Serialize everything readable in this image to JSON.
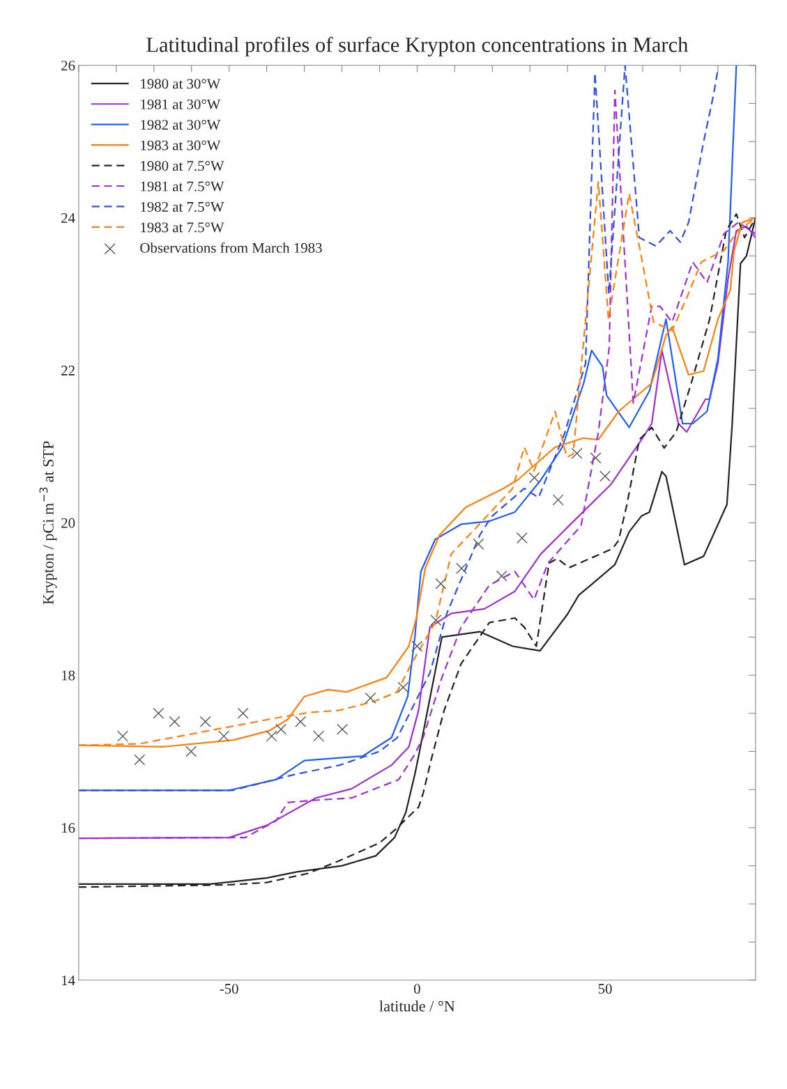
{
  "chart_data": {
    "type": "line",
    "title": "Latitudinal profiles of surface Krypton concentrations in March",
    "xlabel": "latitude / °N",
    "ylabel": "Krypton / pCi m$^{−3}$ at STP",
    "xlim": [
      -90,
      90
    ],
    "ylim": [
      14,
      26
    ],
    "xticks": [
      {
        "value": -90,
        "label": null
      },
      {
        "value": -80,
        "label": null
      },
      {
        "value": -70,
        "label": null
      },
      {
        "value": -60,
        "label": null
      },
      -50,
      {
        "value": -40,
        "label": null
      },
      {
        "value": -30,
        "label": null
      },
      {
        "value": -20,
        "label": null
      },
      {
        "value": -10,
        "label": null
      },
      0,
      {
        "value": 10,
        "label": null
      },
      {
        "value": 20,
        "label": null
      },
      {
        "value": 30,
        "label": null
      },
      {
        "value": 40,
        "label": null
      },
      50,
      {
        "value": 60,
        "label": null
      },
      {
        "value": 70,
        "label": null
      },
      {
        "value": 80,
        "label": null
      },
      {
        "value": 90,
        "label": null
      }
    ],
    "yticks": [
      14,
      {
        "value": 14.5,
        "label": null
      },
      {
        "value": 15,
        "label": null
      },
      {
        "value": 15.5,
        "label": null
      },
      16,
      {
        "value": 16.5,
        "label": null
      },
      {
        "value": 17,
        "label": null
      },
      {
        "value": 17.5,
        "label": null
      },
      18,
      {
        "value": 18.5,
        "label": null
      },
      {
        "value": 19,
        "label": null
      },
      {
        "value": 19.5,
        "label": null
      },
      20,
      {
        "value": 20.5,
        "label": null
      },
      {
        "value": 21,
        "label": null
      },
      {
        "value": 21.5,
        "label": null
      },
      22,
      {
        "value": 22.5,
        "label": null
      },
      {
        "value": 23,
        "label": null
      },
      {
        "value": 23.5,
        "label": null
      },
      24,
      {
        "value": 24.5,
        "label": null
      },
      {
        "value": 25,
        "label": null
      },
      {
        "value": 25.5,
        "label": null
      },
      26
    ],
    "grid": false,
    "legend": "top left",
    "series": [
      {
        "name": "1980 at 30°W",
        "line_style": "solid",
        "color": "#222222",
        "x": [
          -90,
          -55,
          -40,
          -32,
          -20,
          -11,
          -6,
          -3,
          -0.6,
          0.4,
          6.6,
          16.7,
          25.4,
          32.7,
          40,
          43,
          46.4,
          52.6,
          56.4,
          59.7,
          61.8,
          65.1,
          66.2,
          71.1,
          76.2,
          82.4,
          83.8,
          86,
          87.6,
          90
        ],
        "values": [
          15.26,
          15.26,
          15.34,
          15.42,
          15.5,
          15.63,
          15.87,
          16.2,
          16.7,
          16.94,
          18.5,
          18.57,
          18.38,
          18.32,
          18.8,
          19.05,
          19.19,
          19.45,
          19.88,
          20.09,
          20.14,
          20.67,
          20.61,
          19.45,
          19.56,
          20.24,
          21.3,
          23.4,
          23.5,
          24.0
        ]
      },
      {
        "name": "1981 at 30°W",
        "line_style": "solid",
        "color": "#a030d0",
        "x": [
          -90,
          -50,
          -40,
          -26.9,
          -17.4,
          -6.8,
          -2.2,
          0.4,
          3.4,
          9.1,
          17.9,
          26,
          32.9,
          40.4,
          51.5,
          59.7,
          62.4,
          65.1,
          69.5,
          71.7,
          76.7,
          77.8,
          80,
          82.7,
          84.9,
          87.6,
          90
        ],
        "values": [
          15.86,
          15.87,
          16.03,
          16.39,
          16.51,
          16.82,
          17.06,
          17.54,
          18.63,
          18.81,
          18.87,
          19.1,
          19.59,
          19.96,
          20.5,
          21.09,
          21.3,
          22.26,
          21.3,
          21.19,
          21.62,
          21.62,
          22.09,
          23.2,
          23.83,
          23.89,
          23.74
        ]
      },
      {
        "name": "1982 at 30°W",
        "line_style": "solid",
        "color": "#2060f0",
        "x": [
          -90,
          -50,
          -37.5,
          -30,
          -14.4,
          -6.8,
          -2.5,
          -0.6,
          1,
          4.8,
          11.7,
          19.2,
          26,
          32.9,
          38.6,
          44.3,
          46.4,
          49.3,
          50.4,
          56.4,
          61.8,
          66.2,
          70.6,
          73.3,
          77.1,
          80,
          82.7,
          83.3,
          84.9
        ],
        "values": [
          16.49,
          16.49,
          16.63,
          16.88,
          16.94,
          17.18,
          17.72,
          18.5,
          19.36,
          19.78,
          19.98,
          20.02,
          20.14,
          20.56,
          20.99,
          21.83,
          22.26,
          22.05,
          21.67,
          21.25,
          21.73,
          22.67,
          21.3,
          21.3,
          21.46,
          22.15,
          23.42,
          24.1,
          26.0
        ]
      },
      {
        "name": "1983 at 30°W",
        "line_style": "solid",
        "color": "#ff8010",
        "x": [
          -90,
          -67.6,
          -48.8,
          -39.4,
          -34.4,
          -30,
          -23.7,
          -18.7,
          -8.1,
          -2.2,
          -0.2,
          2.2,
          6,
          12.9,
          23,
          26.7,
          36.7,
          44.2,
          48.2,
          53.6,
          58.6,
          62.4,
          66.2,
          67.8,
          72.2,
          76.2,
          80,
          83.3,
          84.3,
          86.5,
          90
        ],
        "values": [
          17.08,
          17.06,
          17.15,
          17.27,
          17.42,
          17.72,
          17.81,
          17.78,
          17.97,
          18.38,
          18.75,
          19.41,
          19.84,
          20.2,
          20.45,
          20.56,
          20.99,
          21.11,
          21.09,
          21.46,
          21.67,
          21.83,
          22.46,
          22.57,
          21.94,
          21.99,
          22.67,
          23.05,
          23.57,
          23.94,
          24.0
        ]
      },
      {
        "name": "1980 at 7.5°W",
        "line_style": "dashed",
        "color": "#222222",
        "x": [
          -90,
          -50,
          -40,
          -29,
          -20,
          -10,
          -5.9,
          0.4,
          1.6,
          4,
          7.2,
          11.7,
          19.2,
          26,
          28.5,
          31.7,
          35.1,
          37.3,
          40.4,
          52,
          53.6,
          55.8,
          59.1,
          62.4,
          65.7,
          68.9,
          72.9,
          77.8,
          82.2,
          84.9,
          87.1,
          90
        ],
        "values": [
          15.22,
          15.25,
          15.28,
          15.4,
          15.58,
          15.8,
          15.97,
          16.27,
          16.45,
          16.94,
          17.54,
          18.15,
          18.69,
          18.75,
          18.63,
          18.38,
          19.47,
          19.53,
          19.41,
          19.66,
          19.77,
          20.24,
          21.09,
          21.25,
          20.98,
          21.19,
          21.83,
          22.67,
          23.83,
          24.05,
          23.74,
          24.0
        ]
      },
      {
        "name": "1981 at 7.5°W",
        "line_style": "dashed",
        "color": "#a030d0",
        "x": [
          -90,
          -45.7,
          -37.5,
          -34.4,
          -26.9,
          -17.4,
          -4.9,
          -0.9,
          1.6,
          6.6,
          11.7,
          19.2,
          26,
          31.1,
          34.8,
          43.6,
          48.2,
          51.1,
          52.6,
          57.5,
          62.4,
          64.6,
          67.8,
          73.3,
          77.1,
          81.6,
          85.4,
          90
        ],
        "values": [
          15.86,
          15.87,
          16.09,
          16.33,
          16.36,
          16.39,
          16.63,
          16.94,
          17.18,
          17.97,
          18.63,
          19.18,
          19.36,
          18.99,
          19.47,
          19.96,
          21.19,
          22.3,
          25.67,
          21.57,
          22.84,
          22.84,
          22.63,
          23.42,
          23.15,
          23.79,
          23.94,
          23.79
        ]
      },
      {
        "name": "1982 at 7.5°W",
        "line_style": "dashed",
        "color": "#3050e0",
        "x": [
          -90,
          -49,
          -33.2,
          -20.6,
          -10,
          -5.3,
          -2.2,
          3.4,
          7.9,
          16.7,
          19.8,
          28.5,
          32.3,
          39.2,
          44.8,
          47.3,
          51,
          55.3,
          59.1,
          63.5,
          67.3,
          70,
          72.2,
          76.2,
          78.9,
          80
        ],
        "values": [
          16.49,
          16.49,
          16.69,
          16.82,
          17.0,
          17.18,
          17.48,
          18.03,
          18.81,
          19.84,
          20.08,
          20.45,
          20.33,
          21.17,
          22.09,
          25.9,
          23.0,
          26.0,
          23.74,
          23.63,
          23.83,
          23.68,
          23.94,
          25.0,
          25.63,
          25.95
        ]
      },
      {
        "name": "1983 at 7.5°W",
        "line_style": "dashed",
        "color": "#ff8010",
        "x": [
          -90,
          -73.8,
          -36.2,
          -28.7,
          -20.6,
          -11.2,
          -5.3,
          -1.5,
          4.8,
          9.1,
          17.3,
          25.4,
          28.5,
          31.1,
          36.7,
          39.8,
          41.5,
          48.2,
          50.9,
          56.4,
          59.7,
          62.9,
          67.8,
          71.7,
          75.6,
          81.6,
          85.4,
          90
        ],
        "values": [
          17.08,
          17.1,
          17.45,
          17.51,
          17.54,
          17.66,
          17.78,
          18.15,
          18.69,
          19.59,
          20.02,
          20.45,
          20.99,
          20.68,
          21.46,
          20.86,
          20.9,
          24.47,
          22.67,
          24.32,
          23.47,
          22.63,
          22.52,
          22.95,
          23.42,
          23.57,
          23.83,
          24.0
        ]
      },
      {
        "name": "Observations from March 1983",
        "type": "scatter",
        "marker": "cross",
        "color": "#555555",
        "x": [
          -78.3,
          -73.8,
          -68.8,
          -64.5,
          -60.1,
          -56.3,
          -51.4,
          -46.3,
          -38.7,
          -36.2,
          -31,
          -26.2,
          -19.9,
          -12.4,
          -3.7,
          0,
          5,
          6.3,
          11.8,
          16.3,
          22.5,
          27.9,
          31.2,
          37.5,
          42.5,
          47.5,
          50
        ],
        "values": [
          17.2,
          16.89,
          17.5,
          17.39,
          17.0,
          17.39,
          17.2,
          17.5,
          17.2,
          17.29,
          17.39,
          17.2,
          17.29,
          17.7,
          17.84,
          18.38,
          18.72,
          19.2,
          19.4,
          19.72,
          19.3,
          19.8,
          20.59,
          20.3,
          20.91,
          20.85,
          20.61
        ]
      }
    ]
  }
}
